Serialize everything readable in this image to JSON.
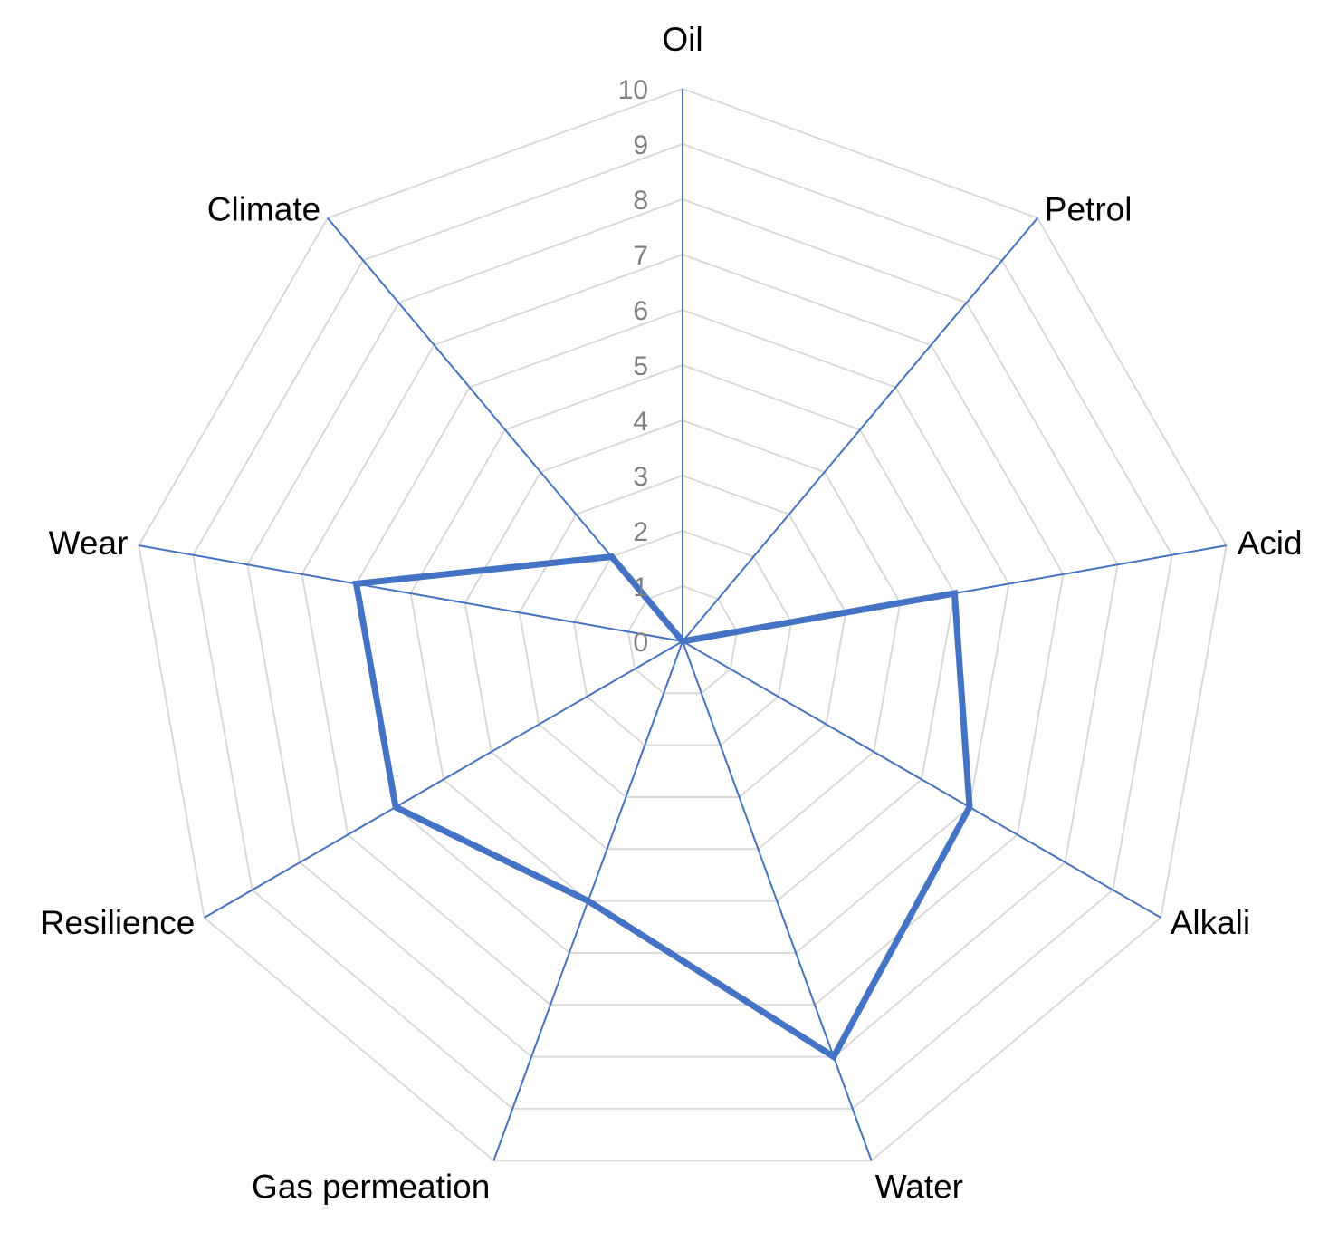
{
  "chart_data": {
    "type": "radar",
    "title": "",
    "categories": [
      "Oil",
      "Petrol",
      "Acid",
      "Alkali",
      "Water",
      "Gas permeation",
      "Resilience",
      "Wear",
      "Climate"
    ],
    "series": [
      {
        "values": [
          0,
          0,
          5,
          6,
          8,
          5,
          6,
          6,
          2
        ]
      }
    ],
    "range": [
      0,
      10
    ],
    "ticks": [
      "0",
      "1",
      "2",
      "3",
      "4",
      "5",
      "6",
      "7",
      "8",
      "9",
      "10"
    ],
    "grid": true,
    "legend": "none",
    "colors": {
      "axis": "#4472c4",
      "series": "#4472c4",
      "grid": "#d9d9d9",
      "ticks": "#7f7f7f",
      "labels": "#000000"
    }
  }
}
